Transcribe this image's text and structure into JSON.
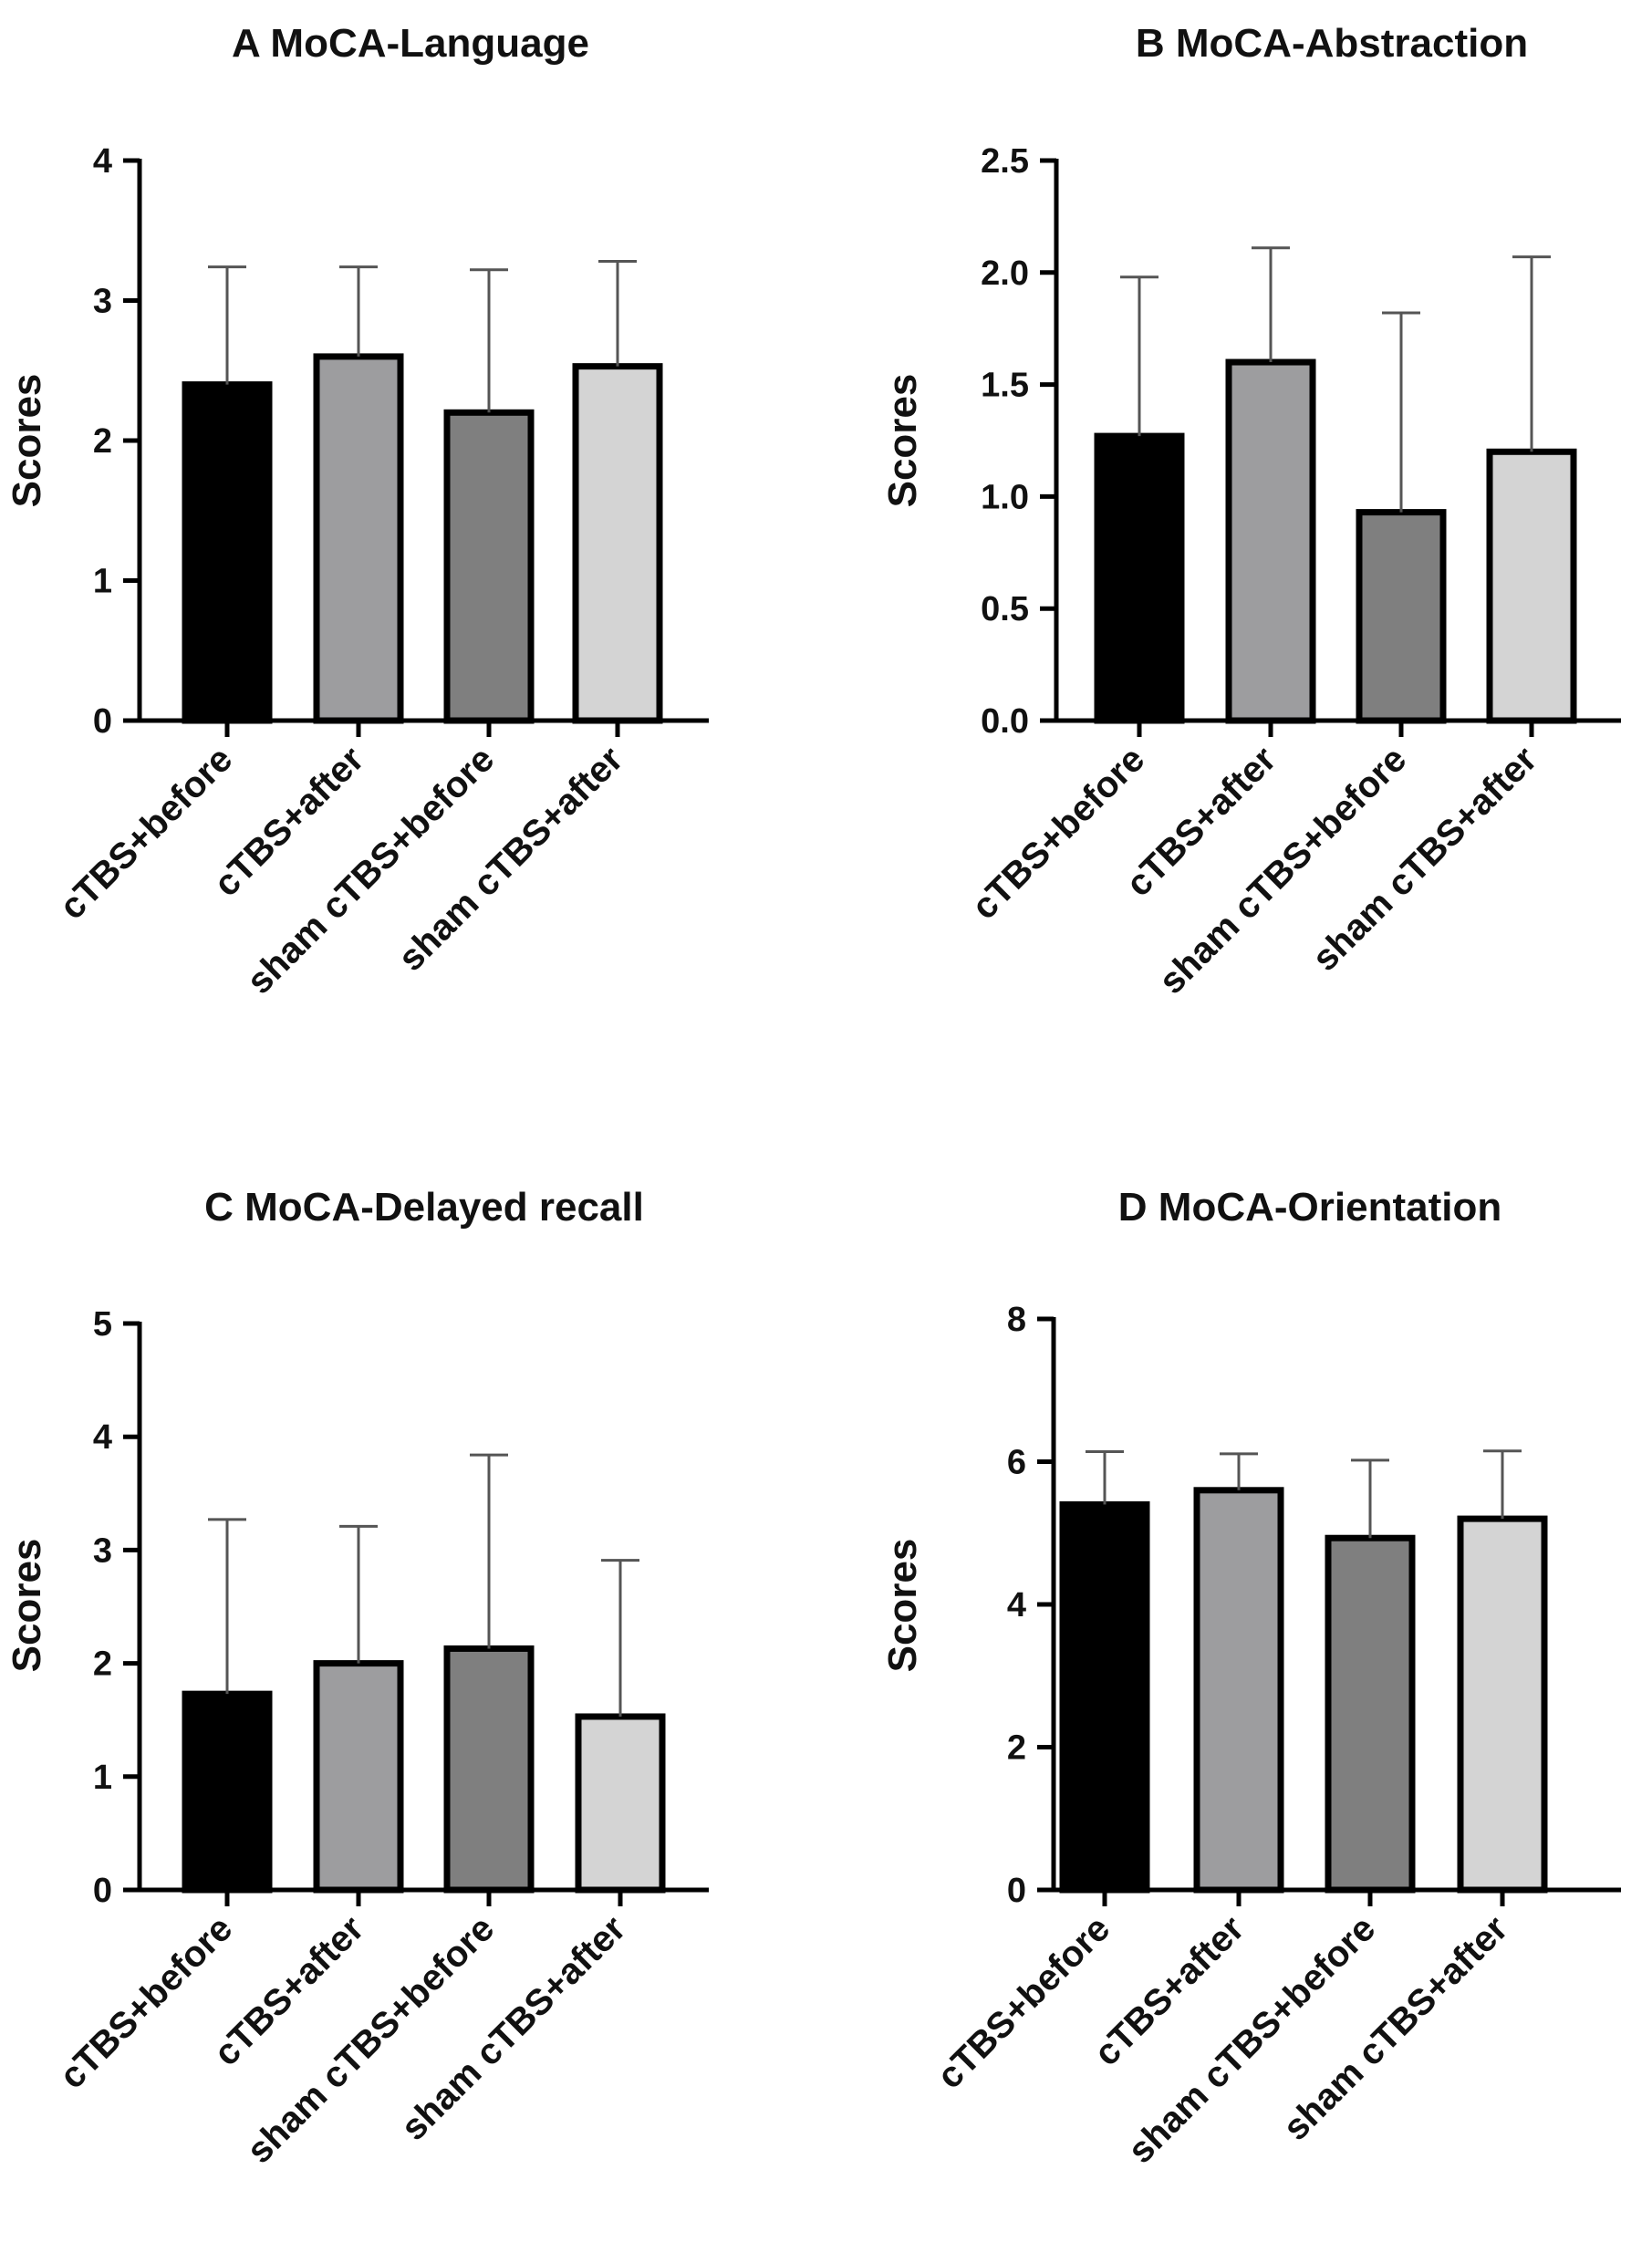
{
  "chart_data": [
    {
      "type": "bar",
      "panel": "A",
      "title": "A  MoCA-Language",
      "ylabel": "Scores",
      "xlabel": "",
      "ylim": [
        0,
        4
      ],
      "yticks": [
        0,
        1,
        2,
        3,
        4
      ],
      "ytick_labels": [
        "0",
        "1",
        "2",
        "3",
        "4"
      ],
      "categories": [
        "cTBS+before",
        "cTBS+after",
        "sham cTBS+before",
        "sham cTBS+after"
      ],
      "values": [
        2.4,
        2.6,
        2.2,
        2.53
      ],
      "errors": [
        0.84,
        0.64,
        1.02,
        0.75
      ],
      "bar_colors": [
        "#000000",
        "#9d9d9f",
        "#7f7f7f",
        "#d4d4d4"
      ]
    },
    {
      "type": "bar",
      "panel": "B",
      "title": "B  MoCA-Abstraction",
      "ylabel": "Scores",
      "xlabel": "",
      "ylim": [
        0,
        2.5
      ],
      "yticks": [
        0,
        0.5,
        1,
        1.5,
        2,
        2.5
      ],
      "ytick_labels": [
        "0.0",
        "0.5",
        "1.0",
        "1.5",
        "2.0",
        "2.5"
      ],
      "categories": [
        "cTBS+before",
        "cTBS+after",
        "sham cTBS+before",
        "sham cTBS+after"
      ],
      "values": [
        1.27,
        1.6,
        0.93,
        1.2
      ],
      "errors": [
        0.71,
        0.51,
        0.89,
        0.87
      ],
      "bar_colors": [
        "#000000",
        "#9d9d9f",
        "#7f7f7f",
        "#d4d4d4"
      ]
    },
    {
      "type": "bar",
      "panel": "C",
      "title": "C  MoCA-Delayed recall",
      "ylabel": "Scores",
      "xlabel": "",
      "ylim": [
        0,
        5
      ],
      "yticks": [
        0,
        1,
        2,
        3,
        4,
        5
      ],
      "ytick_labels": [
        "0",
        "1",
        "2",
        "3",
        "4",
        "5"
      ],
      "categories": [
        "cTBS+before",
        "cTBS+after",
        "sham cTBS+before",
        "sham cTBS+after"
      ],
      "values": [
        1.73,
        2.0,
        2.13,
        1.53
      ],
      "errors": [
        1.54,
        1.21,
        1.71,
        1.38
      ],
      "bar_colors": [
        "#000000",
        "#9d9d9f",
        "#7f7f7f",
        "#d4d4d4"
      ]
    },
    {
      "type": "bar",
      "panel": "D",
      "title": "D  MoCA-Orientation",
      "ylabel": "Scores",
      "xlabel": "",
      "ylim": [
        0,
        8
      ],
      "yticks": [
        0,
        2,
        4,
        6,
        8
      ],
      "ytick_labels": [
        "0",
        "2",
        "4",
        "6",
        "8"
      ],
      "categories": [
        "cTBS+before",
        "cTBS+after",
        "sham cTBS+before",
        "sham cTBS+after"
      ],
      "values": [
        5.4,
        5.6,
        4.93,
        5.2
      ],
      "errors": [
        0.74,
        0.51,
        1.09,
        0.95
      ],
      "bar_colors": [
        "#000000",
        "#9d9d9f",
        "#7f7f7f",
        "#d4d4d4"
      ]
    }
  ]
}
